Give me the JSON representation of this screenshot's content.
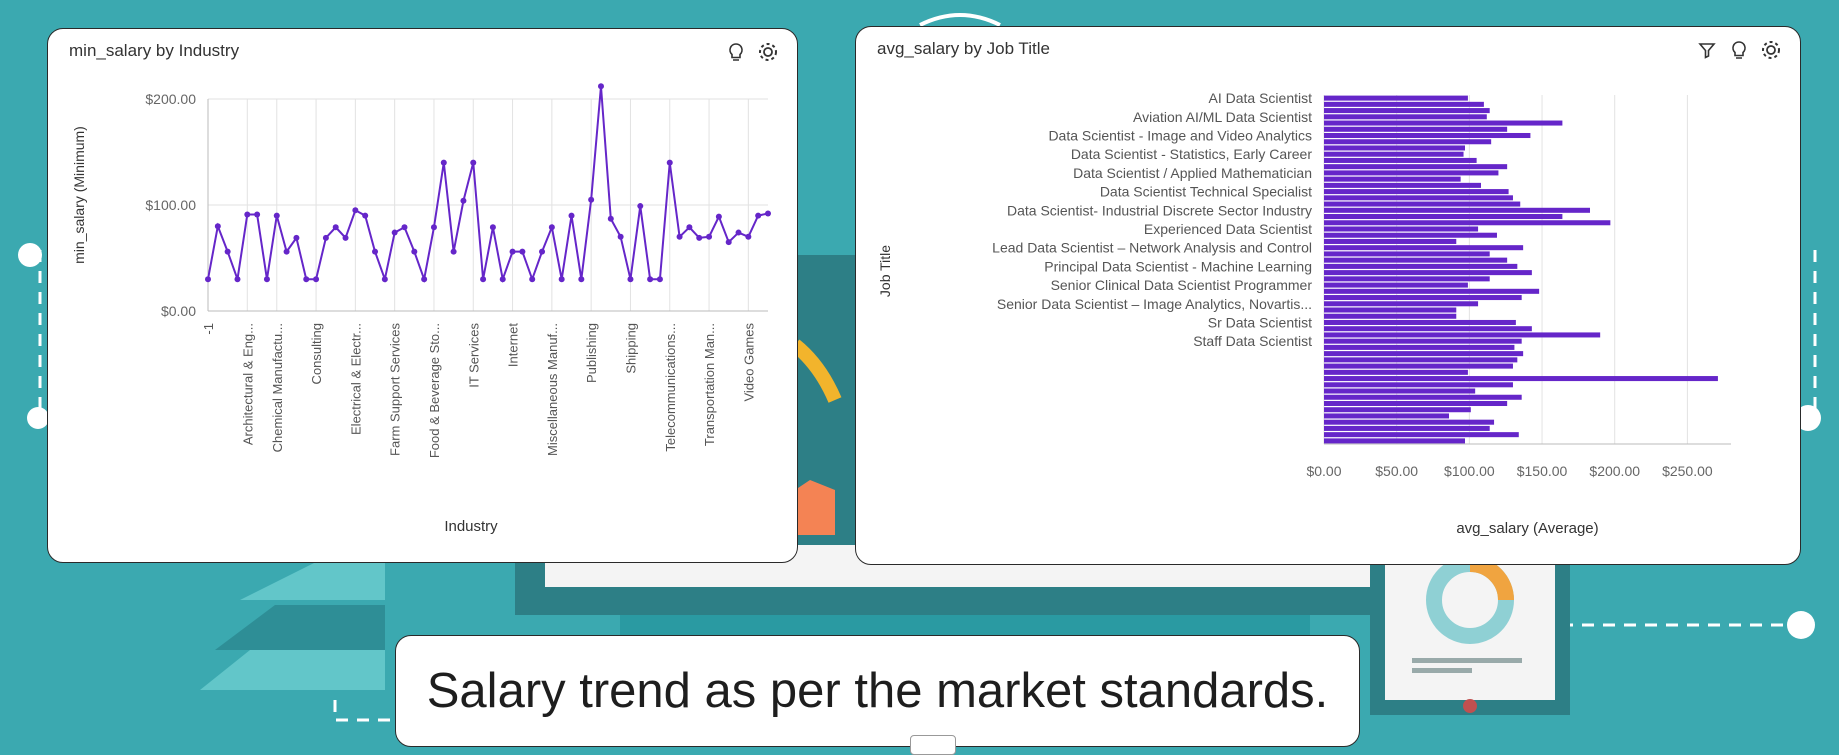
{
  "colors": {
    "series": "#6526c9",
    "background": "#3ba9b0",
    "grid": "#e2e2e2"
  },
  "cards": {
    "left": {
      "title": "min_salary by Industry",
      "icons": [
        "lightbulb-icon",
        "settings-icon"
      ]
    },
    "right": {
      "title": "avg_salary by Job Title",
      "icons": [
        "filter-icon",
        "lightbulb-icon",
        "settings-icon"
      ]
    }
  },
  "caption": "Salary trend as per the market standards.",
  "chart_data": [
    {
      "type": "line",
      "title": "min_salary by Industry",
      "xlabel": "Industry",
      "ylabel": "min_salary (Minimum)",
      "ylim": [
        0,
        200
      ],
      "yticks": [
        "$0.00",
        "$100.00",
        "$200.00"
      ],
      "xtick_labels": [
        "-1",
        "Architectural & Eng...",
        "Chemical Manufactu...",
        "Consulting",
        "Electrical & Electr...",
        "Farm Support Services",
        "Food & Beverage Sto...",
        "IT Services",
        "Internet",
        "Miscellaneous Manuf...",
        "Publishing",
        "Shipping",
        "Telecommunications...",
        "Transportation Man...",
        "Video Games"
      ],
      "xtick_positions": [
        0,
        4,
        7,
        11,
        15,
        19,
        23,
        27,
        31,
        35,
        39,
        43,
        47,
        51,
        55
      ],
      "values": [
        30,
        80,
        56,
        30,
        91,
        91,
        30,
        90,
        56,
        69,
        30,
        30,
        69,
        79,
        69,
        95,
        90,
        56,
        30,
        74,
        79,
        56,
        30,
        79,
        140,
        56,
        104,
        140,
        30,
        79,
        30,
        56,
        56,
        30,
        56,
        79,
        30,
        90,
        30,
        105,
        212,
        87,
        70,
        30,
        99,
        30,
        30,
        140,
        70,
        79,
        69,
        70,
        89,
        65,
        74,
        70,
        90,
        92
      ],
      "grid": true
    },
    {
      "type": "bar",
      "orientation": "horizontal",
      "title": "avg_salary by Job Title",
      "xlabel": "avg_salary (Average)",
      "ylabel": "Job Title",
      "xlim": [
        0,
        280
      ],
      "xticks": [
        "$0.00",
        "$50.00",
        "$100.00",
        "$150.00",
        "$200.00",
        "$250.00"
      ],
      "ytick_labels": [
        "AI Data Scientist",
        "Aviation AI/ML Data Scientist",
        "Data Scientist - Image and Video Analytics",
        "Data Scientist - Statistics, Early Career",
        "Data Scientist / Applied Mathematician",
        "Data Scientist Technical Specialist",
        "Data Scientist- Industrial Discrete Sector Industry",
        "Experienced Data Scientist",
        "Lead Data Scientist – Network Analysis and Control",
        "Principal Data Scientist - Machine Learning",
        "Senior Clinical Data Scientist Programmer",
        "Senior Data Scientist – Image Analytics, Novartis...",
        "Sr Data Scientist",
        "Staff Data Scientist"
      ],
      "ytick_positions": [
        0,
        3,
        6,
        9,
        12,
        15,
        18,
        21,
        24,
        27,
        30,
        33,
        36,
        39
      ],
      "values": [
        99,
        110,
        114,
        112,
        164,
        126,
        142,
        115,
        97,
        96,
        105,
        126,
        120,
        94,
        108,
        127,
        130,
        135,
        183,
        164,
        197,
        106,
        119,
        91,
        137,
        114,
        126,
        133,
        143,
        114,
        99,
        148,
        136,
        106,
        91,
        91,
        132,
        143,
        190,
        136,
        131,
        137,
        133,
        130,
        99,
        271,
        130,
        104,
        136,
        126,
        101,
        86,
        117,
        114,
        134,
        97
      ],
      "grid": true
    }
  ]
}
